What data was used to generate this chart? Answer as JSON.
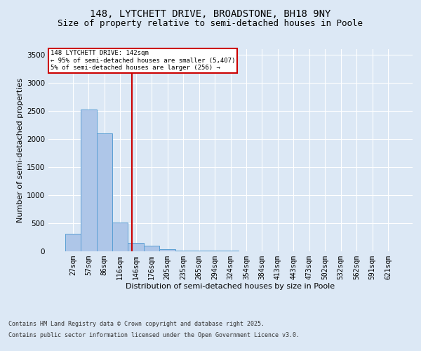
{
  "title1": "148, LYTCHETT DRIVE, BROADSTONE, BH18 9NY",
  "title2": "Size of property relative to semi-detached houses in Poole",
  "xlabel": "Distribution of semi-detached houses by size in Poole",
  "ylabel": "Number of semi-detached properties",
  "footer1": "Contains HM Land Registry data © Crown copyright and database right 2025.",
  "footer2": "Contains public sector information licensed under the Open Government Licence v3.0.",
  "annotation_line1": "148 LYTCHETT DRIVE: 142sqm",
  "annotation_line2": "← 95% of semi-detached houses are smaller (5,407)",
  "annotation_line3": "5% of semi-detached houses are larger (256) →",
  "categories": [
    "27sqm",
    "57sqm",
    "86sqm",
    "116sqm",
    "146sqm",
    "176sqm",
    "205sqm",
    "235sqm",
    "265sqm",
    "294sqm",
    "324sqm",
    "354sqm",
    "384sqm",
    "413sqm",
    "443sqm",
    "473sqm",
    "502sqm",
    "532sqm",
    "562sqm",
    "591sqm",
    "621sqm"
  ],
  "values": [
    310,
    2520,
    2100,
    510,
    150,
    90,
    30,
    5,
    2,
    1,
    1,
    0,
    0,
    0,
    0,
    0,
    0,
    0,
    0,
    0,
    0
  ],
  "bar_color": "#aec6e8",
  "bar_edge_color": "#5a9fd4",
  "vline_color": "#cc0000",
  "vline_x": 3.73,
  "ylim": [
    0,
    3600
  ],
  "yticks": [
    0,
    500,
    1000,
    1500,
    2000,
    2500,
    3000,
    3500
  ],
  "background_color": "#dce8f5",
  "plot_bg_color": "#dce8f5",
  "grid_color": "#ffffff",
  "annotation_box_color": "#cc0000",
  "title_fontsize": 10,
  "subtitle_fontsize": 9,
  "footer_fontsize": 6,
  "ylabel_fontsize": 8,
  "xlabel_fontsize": 8,
  "tick_fontsize": 7
}
